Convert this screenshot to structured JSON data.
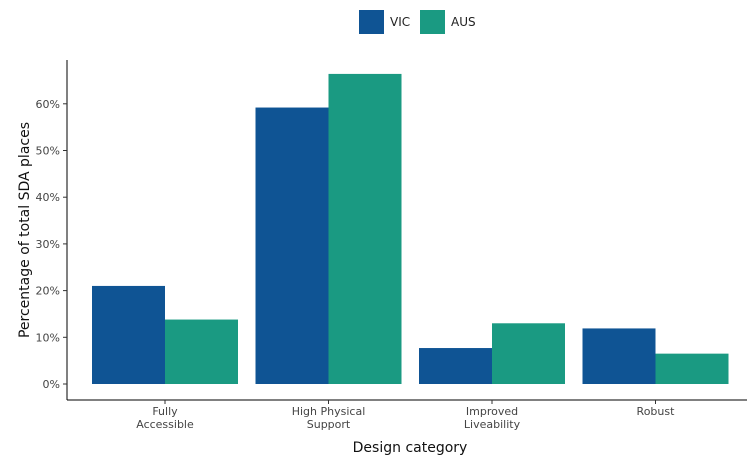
{
  "chart_data": {
    "type": "bar",
    "xlabel": "Design category",
    "ylabel": "Percentage of total SDA places",
    "categories": [
      [
        "Fully",
        "Accessible"
      ],
      [
        "High Physical",
        "Support"
      ],
      [
        "Improved",
        "Liveability"
      ],
      [
        "Robust"
      ]
    ],
    "series": [
      {
        "name": "VIC",
        "color": "#0f5494",
        "values": [
          21,
          59.2,
          7.7,
          11.9
        ]
      },
      {
        "name": "AUS",
        "color": "#1a9a82",
        "values": [
          13.8,
          66.4,
          13,
          6.5
        ]
      }
    ],
    "ylim": [
      0,
      70
    ],
    "yticks": [
      0,
      10,
      20,
      30,
      40,
      50,
      60
    ],
    "ytick_labels": [
      "0%",
      "10%",
      "20%",
      "30%",
      "40%",
      "50%",
      "60%"
    ],
    "legend_position": "top-center",
    "grid": false
  }
}
